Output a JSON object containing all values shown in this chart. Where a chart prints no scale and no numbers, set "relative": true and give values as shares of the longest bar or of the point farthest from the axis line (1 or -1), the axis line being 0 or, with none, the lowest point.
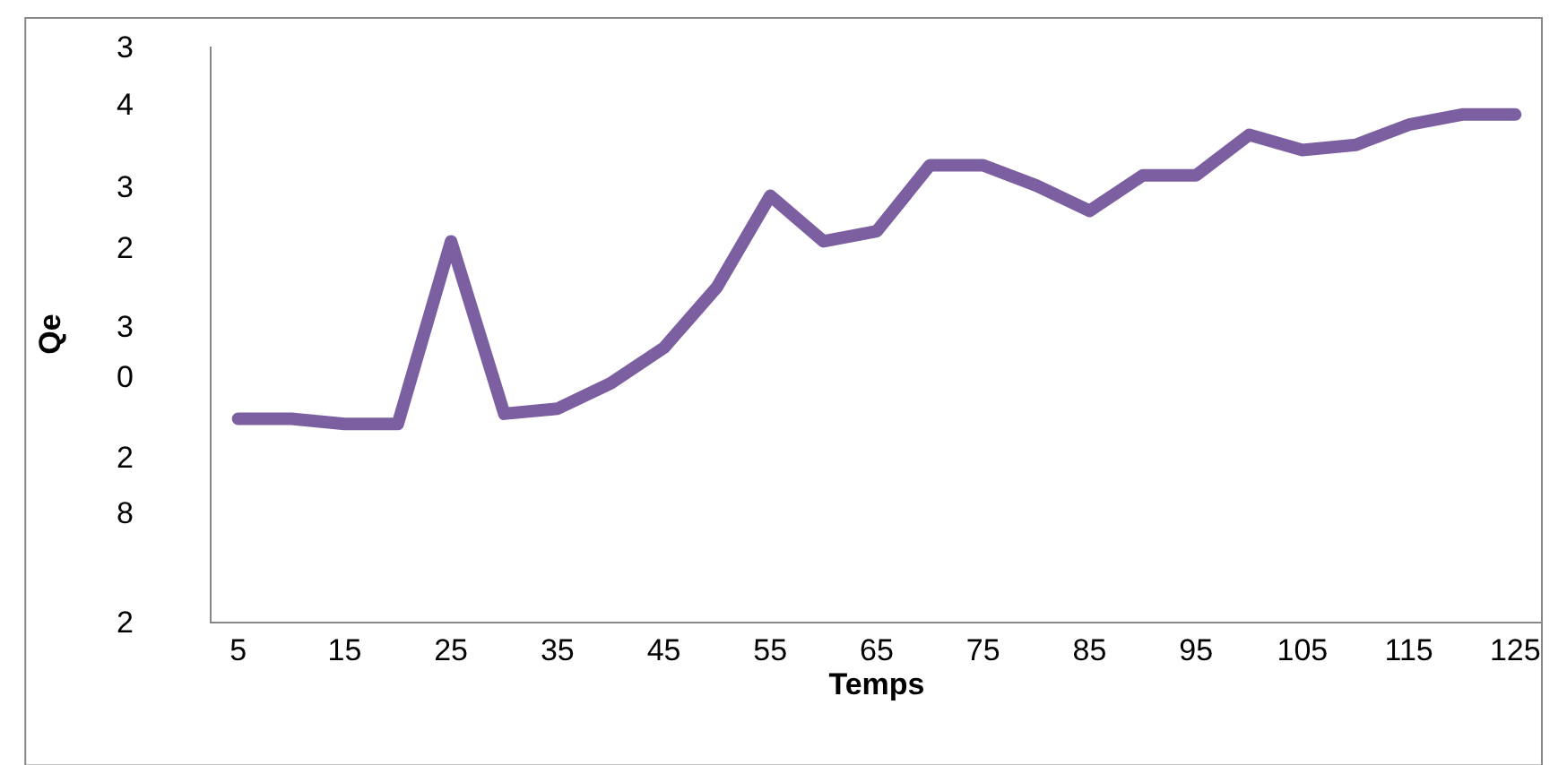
{
  "chart_data": {
    "type": "line",
    "xlabel": "Temps",
    "ylabel": "Qe",
    "relative": true,
    "categories": [
      "5",
      null,
      "15",
      null,
      "25",
      null,
      "35",
      null,
      "45",
      null,
      "55",
      null,
      "65",
      null,
      "75",
      null,
      "85",
      null,
      "95",
      null,
      "105",
      null,
      "115",
      null,
      "125"
    ],
    "series": [
      {
        "color": "#7b5fa0",
        "values": [
          0.4,
          0.4,
          0.39,
          0.39,
          0.75,
          0.41,
          0.42,
          0.47,
          0.54,
          0.66,
          0.84,
          0.75,
          0.77,
          0.9,
          0.9,
          0.86,
          0.81,
          0.88,
          0.88,
          0.96,
          0.93,
          0.94,
          0.98,
          1,
          1
        ]
      }
    ],
    "annotations": [
      "3",
      "4",
      "3",
      "2",
      "3",
      "0",
      "2",
      "8",
      "2"
    ],
    "line_style": "solid"
  }
}
